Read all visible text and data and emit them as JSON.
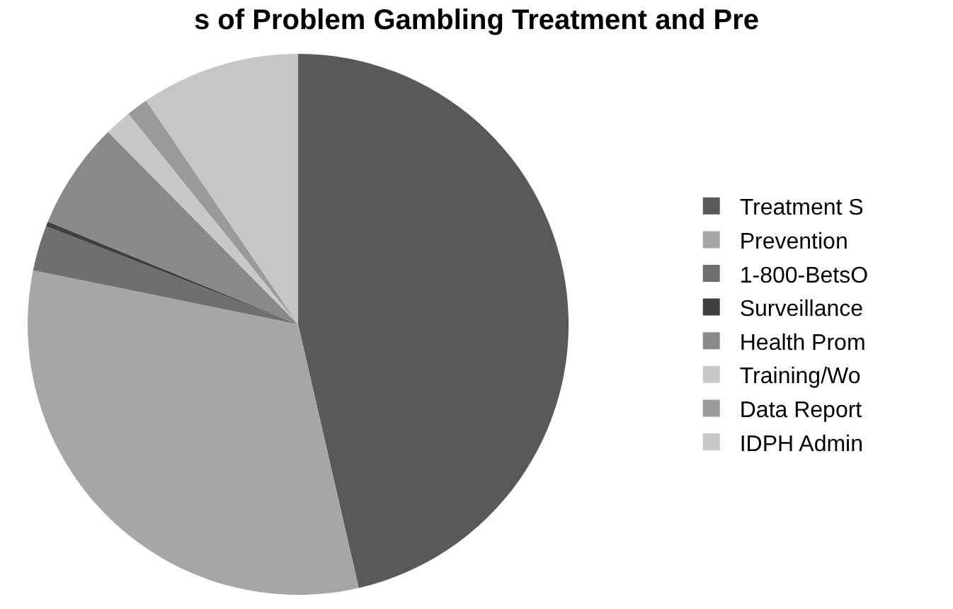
{
  "chart_data": {
    "type": "pie",
    "title": "s of Problem Gambling Treatment and Pre",
    "categories": [
      "Treatment S",
      "Prevention",
      "1-800-BetsO",
      "Surveillance",
      "Health Prom",
      "Training/Wo",
      "Data Report",
      "IDPH Admin"
    ],
    "values": [
      46.4,
      31.8,
      2.7,
      0.3,
      6.4,
      1.6,
      1.3,
      9.5
    ],
    "colors": [
      "#595959",
      "#a6a6a6",
      "#6f6f6f",
      "#404040",
      "#898989",
      "#c8c8c8",
      "#9a9a9a",
      "#c6c6c6"
    ],
    "legend": "right"
  }
}
